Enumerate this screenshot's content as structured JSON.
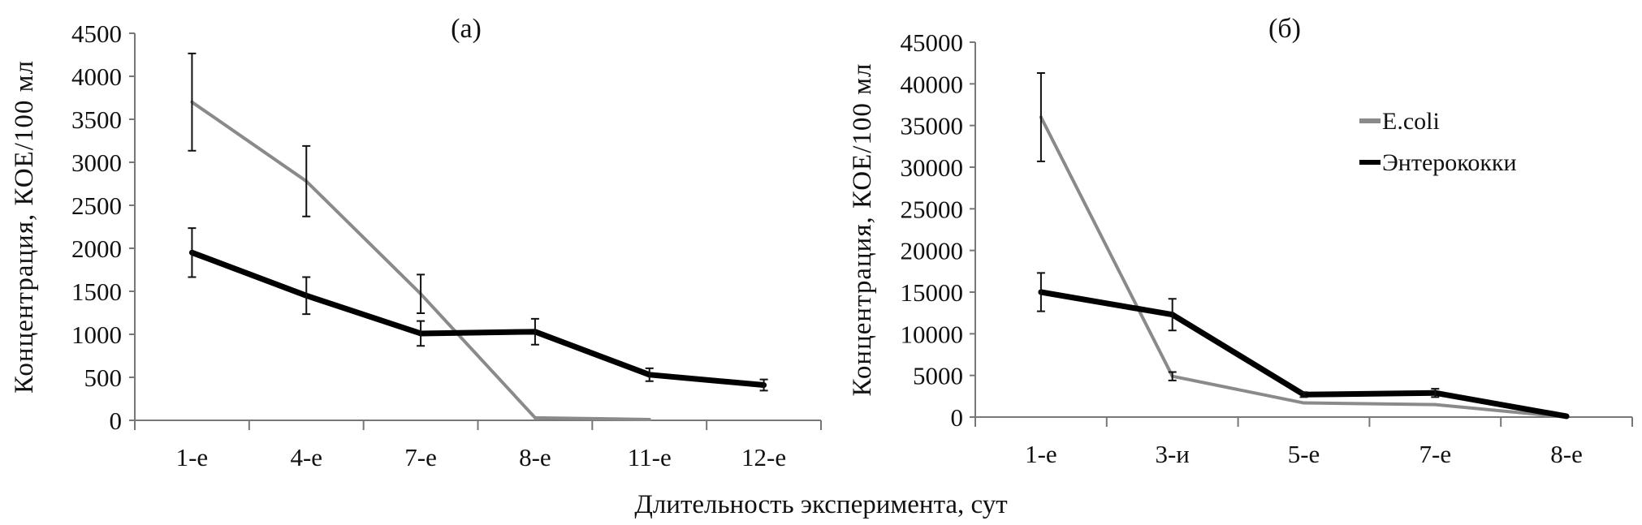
{
  "xlabel": "Длительность эксперимента, сут",
  "colors": {
    "ecoli": "#8a8a8a",
    "entero": "#000000",
    "axis": "#777777"
  },
  "chart_data": [
    {
      "type": "line",
      "title": "(a)",
      "ylabel": "Концентрация, КОЕ/100 мл",
      "ylim": [
        0,
        4500
      ],
      "yticks": [
        0,
        500,
        1000,
        1500,
        2000,
        2500,
        3000,
        3500,
        4000,
        4500
      ],
      "categories": [
        "1-е",
        "4-е",
        "7-е",
        "8-е",
        "11-е",
        "12-е"
      ],
      "series": [
        {
          "name": "E.coli",
          "values": [
            3700,
            2780,
            1470,
            30,
            10,
            null
          ],
          "errors": [
            565,
            410,
            225,
            null,
            null,
            null
          ]
        },
        {
          "name": "Энтерококки",
          "values": [
            1950,
            1450,
            1010,
            1030,
            530,
            410
          ],
          "errors": [
            285,
            215,
            145,
            150,
            75,
            65
          ]
        }
      ]
    },
    {
      "type": "line",
      "title": "(б)",
      "ylabel": "Концентрация, КОЕ/100 мл",
      "ylim": [
        0,
        45000
      ],
      "yticks": [
        0,
        5000,
        10000,
        15000,
        20000,
        25000,
        30000,
        35000,
        40000,
        45000
      ],
      "categories": [
        "1-е",
        "3-и",
        "5-е",
        "7-е",
        "8-е"
      ],
      "legend": "top-right",
      "series": [
        {
          "name": "E.coli",
          "values": [
            36000,
            4900,
            1700,
            1500,
            0
          ],
          "errors": [
            5300,
            500,
            null,
            null,
            null
          ]
        },
        {
          "name": "Энтерококки",
          "values": [
            15000,
            12300,
            2700,
            2900,
            100
          ],
          "errors": [
            2300,
            1900,
            300,
            500,
            null
          ]
        }
      ]
    }
  ]
}
